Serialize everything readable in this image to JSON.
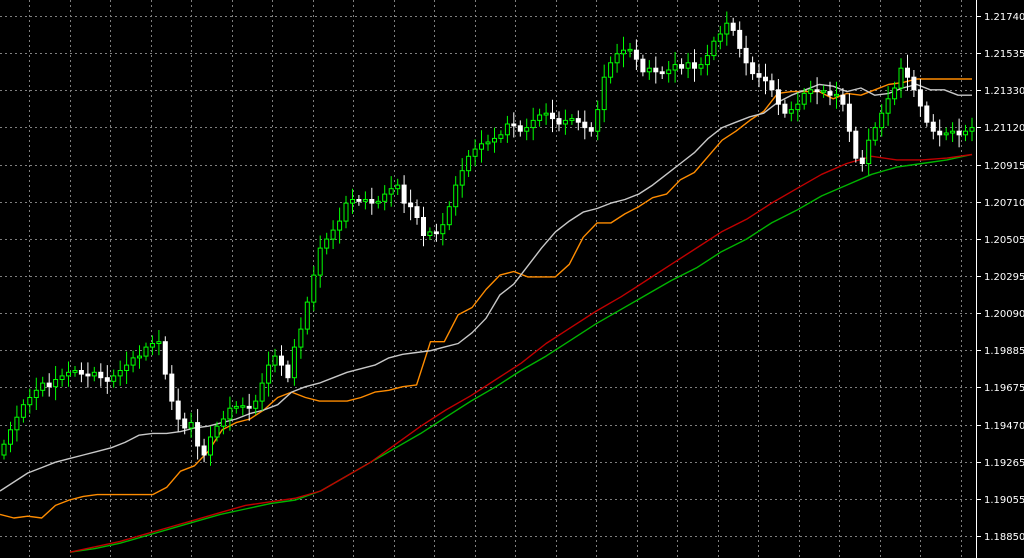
{
  "chart_data": {
    "type": "line",
    "title": "",
    "xlabel": "",
    "ylabel": "",
    "ylim": [
      1.1876,
      1.2185
    ],
    "y_ticks": [
      "1.21740",
      "1.21535",
      "1.21330",
      "1.21120",
      "1.20915",
      "1.20710",
      "1.20505",
      "1.20295",
      "1.20090",
      "1.19885",
      "1.19675",
      "1.19470",
      "1.19265",
      "1.19055",
      "1.18850"
    ],
    "grid": true,
    "legend": "none",
    "colors": {
      "background": "#000000",
      "grid": "#7f7f7f",
      "axis": "#ffffff",
      "bull_candle": "#00ff00",
      "bear_candle": "#ffffff",
      "series_white": "#c8c8c8",
      "series_orange": "#ff8c00",
      "series_red": "#c00000",
      "series_green": "#00b400"
    },
    "candles_close": [
      1.1936,
      1.1944,
      1.1951,
      1.1958,
      1.1962,
      1.1966,
      1.197,
      1.1968,
      1.1972,
      1.1974,
      1.1976,
      1.1977,
      1.1975,
      1.1974,
      1.1976,
      1.1973,
      1.1971,
      1.1974,
      1.1977,
      1.198,
      1.1984,
      1.1985,
      1.199,
      1.1992,
      1.1993,
      1.1975,
      1.196,
      1.195,
      1.1945,
      1.1948,
      1.1935,
      1.193,
      1.194,
      1.1946,
      1.195,
      1.1956,
      1.1957,
      1.1957,
      1.1956,
      1.196,
      1.197,
      1.198,
      1.1985,
      1.198,
      1.1973,
      1.199,
      1.2,
      1.2015,
      1.203,
      1.2045,
      1.205,
      1.2055,
      1.206,
      1.207,
      1.2072,
      1.2071,
      1.2072,
      1.207,
      1.2071,
      1.2075,
      1.2078,
      1.208,
      1.207,
      1.2068,
      1.2062,
      1.2052,
      1.2054,
      1.2053,
      1.2058,
      1.2068,
      1.208,
      1.2088,
      1.2096,
      1.21,
      1.2103,
      1.2104,
      1.2106,
      1.2108,
      1.2114,
      1.2113,
      1.211,
      1.2112,
      1.2116,
      1.2119,
      1.212,
      1.2117,
      1.2114,
      1.2116,
      1.2117,
      1.2115,
      1.2112,
      1.211,
      1.2122,
      1.214,
      1.2148,
      1.2153,
      1.2155,
      1.2155,
      1.215,
      1.2143,
      1.2145,
      1.2143,
      1.2142,
      1.2144,
      1.2147,
      1.2145,
      1.2148,
      1.2145,
      1.2147,
      1.2152,
      1.216,
      1.2164,
      1.217,
      1.2166,
      1.2156,
      1.2148,
      1.2142,
      1.214,
      1.2138,
      1.2133,
      1.2125,
      1.212,
      1.2122,
      1.2125,
      1.2131,
      1.2133,
      1.2132,
      1.2132,
      1.213,
      1.213,
      1.2125,
      1.211,
      1.2095,
      1.2092,
      1.2105,
      1.2112,
      1.212,
      1.2128,
      1.2134,
      1.2145,
      1.214,
      1.2133,
      1.2124,
      1.2115,
      1.211,
      1.2108,
      1.2109,
      1.211,
      1.2108,
      1.211,
      1.2112
    ],
    "series_white": [
      1.191,
      1.1915,
      1.192,
      1.1923,
      1.1926,
      1.1928,
      1.193,
      1.1932,
      1.1934,
      1.1937,
      1.1941,
      1.1942,
      1.1942,
      1.1943,
      1.1945,
      1.1946,
      1.1948,
      1.195,
      1.1953,
      1.1955,
      1.1958,
      1.1965,
      1.1968,
      1.197,
      1.1973,
      1.1976,
      1.1978,
      1.198,
      1.1984,
      1.1986,
      1.1987,
      1.1988,
      1.199,
      1.1992,
      1.1998,
      1.2006,
      1.2019,
      1.2025,
      1.2035,
      1.2045,
      1.2054,
      1.206,
      1.2065,
      1.2067,
      1.207,
      1.2072,
      1.2075,
      1.208,
      1.2086,
      1.2092,
      1.2098,
      1.2106,
      1.2112,
      1.2115,
      1.2118,
      1.212,
      1.2126,
      1.213,
      1.2133,
      1.2136,
      1.2135,
      1.2132,
      1.2134,
      1.213,
      1.2131,
      1.2134,
      1.2136,
      1.2133,
      1.2133,
      1.213,
      1.213
    ],
    "series_orange": [
      1.1897,
      1.1895,
      1.1896,
      1.1895,
      1.1902,
      1.1905,
      1.1907,
      1.1908,
      1.1908,
      1.1908,
      1.1908,
      1.1908,
      1.1912,
      1.1921,
      1.1924,
      1.1932,
      1.1944,
      1.1948,
      1.195,
      1.1955,
      1.1962,
      1.1965,
      1.1962,
      1.196,
      1.196,
      1.196,
      1.1962,
      1.1965,
      1.1966,
      1.1968,
      1.1969,
      1.1993,
      1.1993,
      1.2008,
      1.2012,
      1.2022,
      1.203,
      1.2032,
      1.2029,
      1.2029,
      1.2029,
      1.2036,
      1.2051,
      1.2059,
      1.2059,
      1.2064,
      1.2068,
      1.2073,
      1.2075,
      1.2083,
      1.2087,
      1.2096,
      1.2105,
      1.211,
      1.2116,
      1.2121,
      1.2131,
      1.2132,
      1.2132,
      1.2132,
      1.2128,
      1.2131,
      1.213,
      1.2133,
      1.2136,
      1.2137,
      1.2139,
      1.2139,
      1.2139,
      1.2139,
      1.2139
    ],
    "series_red": [
      1.1876,
      1.1879,
      1.1882,
      1.1886,
      1.189,
      1.1894,
      1.1898,
      1.1902,
      1.1904,
      1.1906,
      1.191,
      1.1918,
      1.1926,
      1.1936,
      1.1946,
      1.1955,
      1.1963,
      1.1972,
      1.1981,
      1.1992,
      1.2001,
      1.201,
      1.2018,
      1.2027,
      1.2036,
      1.2045,
      1.2054,
      1.2061,
      1.207,
      1.2078,
      1.2086,
      1.2092,
      1.2096,
      1.2094,
      1.2094,
      1.2095,
      1.2097
    ],
    "series_green": [
      1.1876,
      1.1878,
      1.1881,
      1.1885,
      1.1889,
      1.1893,
      1.1897,
      1.19,
      1.1903,
      1.1905,
      1.191,
      1.1918,
      1.1926,
      1.1934,
      1.1942,
      1.1951,
      1.196,
      1.1968,
      1.1977,
      1.1985,
      1.1994,
      1.2003,
      1.2011,
      1.2019,
      1.2027,
      1.2034,
      1.2043,
      1.205,
      1.2059,
      1.2066,
      1.2074,
      1.208,
      1.2086,
      1.209,
      1.2092,
      1.2094,
      1.2097
    ]
  }
}
